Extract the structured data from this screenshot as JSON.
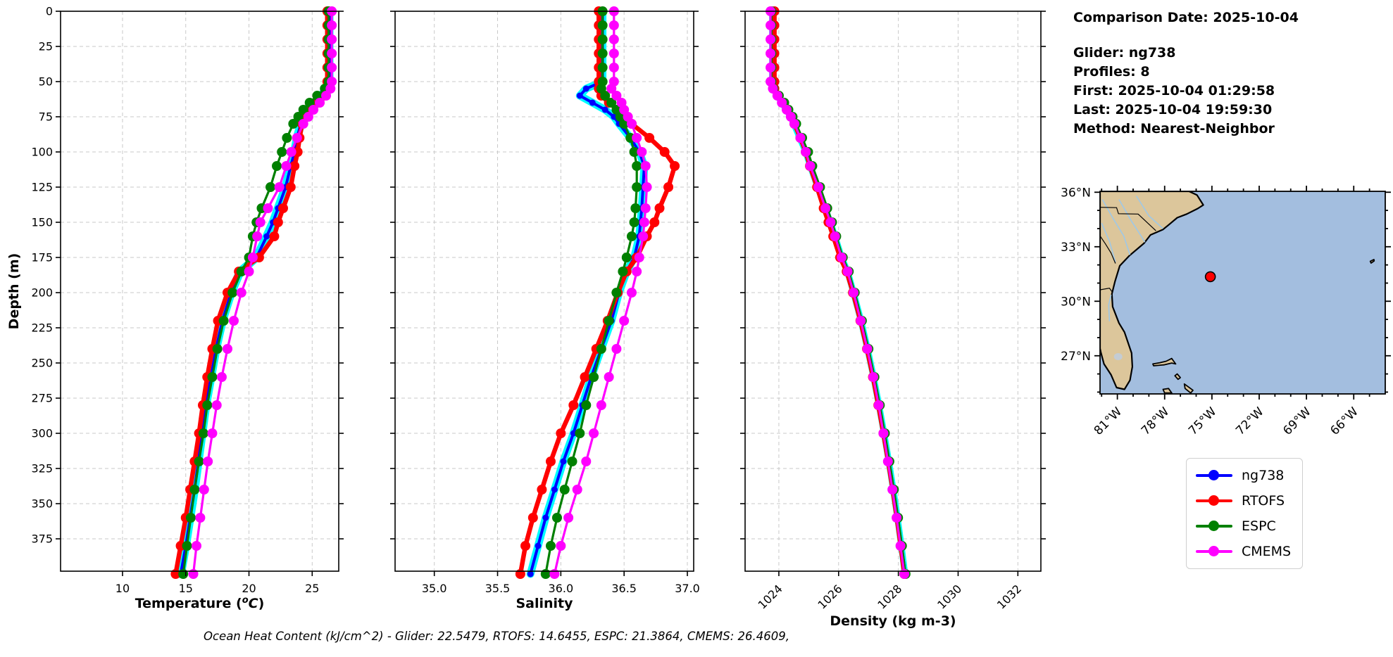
{
  "info_panel": {
    "comparison_date": "Comparison Date: 2025-10-04",
    "glider": "Glider: ng738",
    "profiles": "Profiles: 8",
    "first": "First: 2025-10-04 01:29:58",
    "last": "Last: 2025-10-04 19:59:30",
    "method": "Method: Nearest-Neighbor"
  },
  "footer": {
    "ohc_line": "Ocean Heat Content (kJ/cm^2) - Glider: 22.5479,  RTOFS: 14.6455,  ESPC: 21.3864,  CMEMS: 26.4609,",
    "ohc_values": {
      "glider": 22.5479,
      "rtofs": 14.6455,
      "espc": 21.3864,
      "cmems": 26.4609
    }
  },
  "legend": {
    "items": [
      {
        "label": "ng738",
        "color": "#0000ff"
      },
      {
        "label": "RTOFS",
        "color": "#ff0000"
      },
      {
        "label": "ESPC",
        "color": "#008000"
      },
      {
        "label": "CMEMS",
        "color": "#ff00ff"
      }
    ]
  },
  "colors": {
    "glider_envelope": "#00ffff",
    "grid": "#c9c9c9",
    "land": "#dcc69b",
    "ocean": "#a3bedf",
    "river": "#9ec8e8",
    "lake": "#c4ccd4",
    "glider_dot": "#ff0000"
  },
  "map": {
    "lat_tick_labels": [
      "36°N",
      "33°N",
      "30°N",
      "27°N"
    ],
    "lat_tick_values": [
      36,
      33,
      30,
      27
    ],
    "lon_tick_labels": [
      "81°W",
      "78°W",
      "75°W",
      "72°W",
      "69°W",
      "66°W"
    ],
    "lon_tick_values": [
      -81,
      -78,
      -75,
      -72,
      -69,
      -66
    ],
    "extent": {
      "lon_min": -82.1,
      "lon_max": -64.0,
      "lat_min": 24.9,
      "lat_max": 36.05
    },
    "glider_position": {
      "lat": 31.35,
      "lon": -75.1
    }
  },
  "chart_data": {
    "type": "line",
    "orientation": "vertical-profiles",
    "grid": true,
    "ylabel": "Depth (m)",
    "ylim": [
      0,
      398
    ],
    "depth_ticks": [
      0,
      25,
      50,
      75,
      100,
      125,
      150,
      175,
      200,
      225,
      250,
      275,
      300,
      325,
      350,
      375
    ],
    "depths": [
      0,
      10,
      20,
      30,
      40,
      50,
      55,
      60,
      65,
      70,
      75,
      80,
      90,
      100,
      110,
      125,
      140,
      150,
      160,
      175,
      185,
      200,
      220,
      240,
      260,
      280,
      300,
      320,
      340,
      360,
      380,
      400
    ],
    "charts": [
      {
        "xlabel": "Temperature (°C)",
        "xtick_labels": [
          "10",
          "15",
          "20",
          "25"
        ],
        "xtick_values": [
          10,
          15,
          20,
          25
        ],
        "xlim": [
          5.1,
          27.1
        ],
        "series": [
          {
            "name": "ng738",
            "color": "#0000ff",
            "values": [
              26.35,
              26.35,
              26.35,
              26.35,
              26.35,
              26.35,
              26.2,
              25.7,
              25.2,
              24.7,
              24.35,
              24.1,
              23.8,
              23.6,
              23.3,
              22.9,
              22.3,
              21.9,
              21.4,
              20.6,
              19.3,
              18.6,
              17.9,
              17.4,
              17.0,
              16.6,
              16.3,
              16.0,
              15.7,
              15.35,
              15.0,
              14.6
            ]
          },
          {
            "name": "RTOFS",
            "color": "#ff0000",
            "values": [
              26.2,
              26.2,
              26.2,
              26.2,
              26.2,
              26.2,
              26.2,
              25.9,
              25.4,
              24.9,
              24.5,
              24.2,
              24.0,
              23.85,
              23.6,
              23.3,
              22.7,
              22.3,
              22.0,
              20.8,
              19.2,
              18.3,
              17.55,
              17.1,
              16.7,
              16.35,
              16.05,
              15.7,
              15.35,
              15.0,
              14.6,
              14.2
            ]
          },
          {
            "name": "ESPC",
            "color": "#008000",
            "values": [
              26.3,
              26.3,
              26.3,
              26.3,
              26.3,
              26.3,
              26.0,
              25.4,
              24.8,
              24.3,
              23.9,
              23.5,
              23.0,
              22.6,
              22.2,
              21.7,
              21.0,
              20.6,
              20.3,
              20.0,
              19.4,
              18.7,
              18.0,
              17.5,
              17.1,
              16.7,
              16.4,
              16.05,
              15.7,
              15.4,
              15.1,
              14.8
            ]
          },
          {
            "name": "CMEMS",
            "color": "#ff00ff",
            "values": [
              26.55,
              26.55,
              26.55,
              26.55,
              26.55,
              26.55,
              26.45,
              26.1,
              25.6,
              25.1,
              24.7,
              24.3,
              23.8,
              23.35,
              22.95,
              22.4,
              21.5,
              20.9,
              20.65,
              20.3,
              20.0,
              19.4,
              18.8,
              18.3,
              17.85,
              17.45,
              17.1,
              16.75,
              16.45,
              16.15,
              15.85,
              15.6
            ]
          }
        ]
      },
      {
        "xlabel": "Salinity",
        "xtick_labels": [
          "35.0",
          "35.5",
          "36.0",
          "36.5",
          "37.0"
        ],
        "xtick_values": [
          35.0,
          35.5,
          36.0,
          36.5,
          37.0
        ],
        "xlim": [
          34.69,
          37.05
        ],
        "series": [
          {
            "name": "ng738",
            "color": "#0000ff",
            "values": [
              36.33,
              36.33,
              36.33,
              36.33,
              36.33,
              36.33,
              36.2,
              36.15,
              36.25,
              36.35,
              36.42,
              36.46,
              36.55,
              36.62,
              36.66,
              36.65,
              36.64,
              36.63,
              36.62,
              36.58,
              36.52,
              36.46,
              36.4,
              36.32,
              36.24,
              36.17,
              36.1,
              36.02,
              35.95,
              35.88,
              35.82,
              35.76
            ]
          },
          {
            "name": "RTOFS",
            "color": "#ff0000",
            "values": [
              36.3,
              36.3,
              36.3,
              36.3,
              36.3,
              36.3,
              36.3,
              36.32,
              36.38,
              36.45,
              36.5,
              36.56,
              36.7,
              36.82,
              36.9,
              36.85,
              36.78,
              36.74,
              36.68,
              36.6,
              36.52,
              36.45,
              36.37,
              36.28,
              36.19,
              36.1,
              36.0,
              35.92,
              35.85,
              35.78,
              35.72,
              35.68
            ]
          },
          {
            "name": "ESPC",
            "color": "#008000",
            "values": [
              36.33,
              36.33,
              36.33,
              36.33,
              36.33,
              36.33,
              36.32,
              36.35,
              36.4,
              36.44,
              36.47,
              36.5,
              36.55,
              36.58,
              36.6,
              36.6,
              36.59,
              36.58,
              36.56,
              36.52,
              36.49,
              36.44,
              36.38,
              36.32,
              36.26,
              36.2,
              36.15,
              36.09,
              36.03,
              35.97,
              35.92,
              35.88
            ]
          },
          {
            "name": "CMEMS",
            "color": "#ff00ff",
            "values": [
              36.42,
              36.42,
              36.42,
              36.42,
              36.42,
              36.42,
              36.4,
              36.44,
              36.48,
              36.5,
              36.53,
              36.56,
              36.6,
              36.64,
              36.67,
              36.68,
              36.67,
              36.66,
              36.65,
              36.62,
              36.6,
              36.56,
              36.5,
              36.44,
              36.38,
              36.32,
              36.26,
              36.2,
              36.13,
              36.06,
              36.0,
              35.95
            ]
          }
        ]
      },
      {
        "xlabel": "Density (kg m-3)",
        "xtick_labels": [
          "1024",
          "1026",
          "1028",
          "1030",
          "1032"
        ],
        "xtick_values": [
          1024,
          1026,
          1028,
          1030,
          1032
        ],
        "xlim": [
          1022.87,
          1032.77
        ],
        "series": [
          {
            "name": "ng738",
            "color": "#0000ff",
            "values": [
              1023.78,
              1023.78,
              1023.78,
              1023.78,
              1023.78,
              1023.78,
              1023.85,
              1023.95,
              1024.1,
              1024.25,
              1024.4,
              1024.5,
              1024.7,
              1024.9,
              1025.05,
              1025.3,
              1025.55,
              1025.72,
              1025.88,
              1026.1,
              1026.3,
              1026.5,
              1026.75,
              1026.97,
              1027.17,
              1027.35,
              1027.52,
              1027.68,
              1027.83,
              1027.97,
              1028.1,
              1028.22
            ]
          },
          {
            "name": "RTOFS",
            "color": "#ff0000",
            "values": [
              1023.85,
              1023.85,
              1023.85,
              1023.85,
              1023.85,
              1023.85,
              1023.85,
              1023.98,
              1024.12,
              1024.28,
              1024.42,
              1024.52,
              1024.72,
              1024.9,
              1025.04,
              1025.28,
              1025.5,
              1025.66,
              1025.82,
              1026.05,
              1026.27,
              1026.48,
              1026.73,
              1026.95,
              1027.15,
              1027.33,
              1027.5,
              1027.66,
              1027.81,
              1027.95,
              1028.08,
              1028.2
            ]
          },
          {
            "name": "ESPC",
            "color": "#008000",
            "values": [
              1023.75,
              1023.75,
              1023.75,
              1023.75,
              1023.75,
              1023.75,
              1023.82,
              1024.0,
              1024.18,
              1024.32,
              1024.46,
              1024.58,
              1024.78,
              1024.98,
              1025.12,
              1025.38,
              1025.62,
              1025.78,
              1025.92,
              1026.14,
              1026.34,
              1026.54,
              1026.78,
              1027.0,
              1027.2,
              1027.38,
              1027.55,
              1027.7,
              1027.85,
              1027.99,
              1028.12,
              1028.24
            ]
          },
          {
            "name": "CMEMS",
            "color": "#ff00ff",
            "values": [
              1023.72,
              1023.72,
              1023.72,
              1023.72,
              1023.72,
              1023.72,
              1023.8,
              1023.95,
              1024.1,
              1024.26,
              1024.4,
              1024.52,
              1024.72,
              1024.9,
              1025.05,
              1025.32,
              1025.56,
              1025.73,
              1025.88,
              1026.1,
              1026.3,
              1026.5,
              1026.74,
              1026.96,
              1027.16,
              1027.34,
              1027.5,
              1027.65,
              1027.8,
              1027.94,
              1028.07,
              1028.2
            ]
          }
        ]
      }
    ]
  }
}
